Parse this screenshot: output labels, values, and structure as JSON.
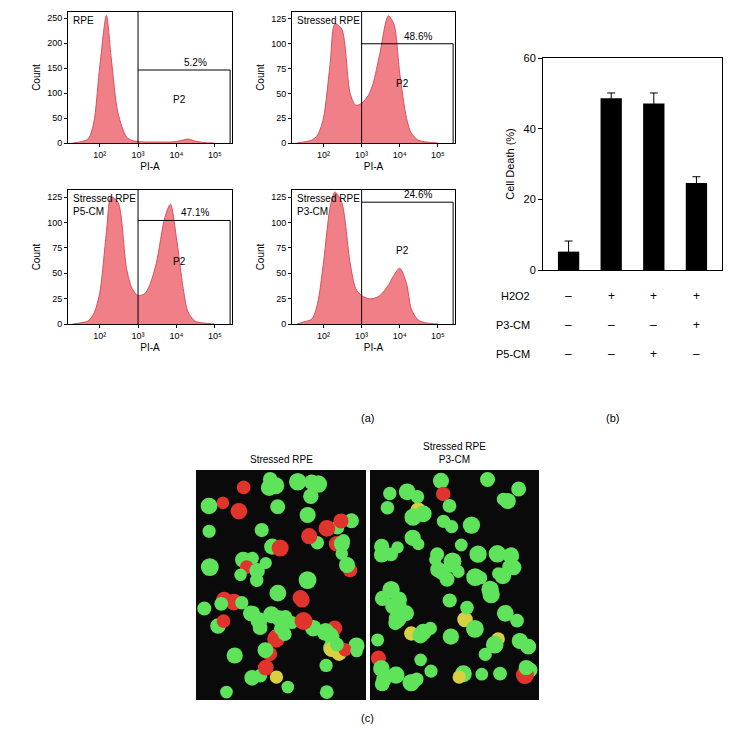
{
  "chart_data": [
    {
      "type": "area",
      "title": [
        "RPE"
      ],
      "x_label": "PI-A",
      "y_label": "Count",
      "color": "#f07f87",
      "log": "x",
      "x": [
        20,
        30,
        50,
        70,
        100,
        150,
        200,
        300,
        500,
        700,
        1000,
        1500,
        2000,
        3000,
        5000,
        7000,
        10000,
        15000,
        20000,
        30000,
        50000,
        100000
      ],
      "values": [
        0,
        2,
        8,
        40,
        150,
        255,
        170,
        60,
        12,
        5,
        3,
        2,
        2,
        2,
        2,
        2,
        3,
        6,
        8,
        4,
        1,
        0
      ],
      "xlim": [
        15,
        280000
      ],
      "xticks": [
        {
          "value": 100,
          "label": "10²"
        },
        {
          "value": 1000,
          "label": "10³"
        },
        {
          "value": 10000,
          "label": "10⁴"
        },
        {
          "value": 100000,
          "label": "10⁵"
        }
      ],
      "ylim": [
        0,
        262
      ],
      "yticks": [
        0,
        50,
        100,
        150,
        200,
        250
      ],
      "gate": {
        "name": "P2",
        "x": [
          1000,
          250000
        ],
        "height": 146,
        "label": "5.2%"
      }
    },
    {
      "type": "area",
      "title": [
        "Stressed RPE"
      ],
      "x_label": "PI-A",
      "y_label": "Count",
      "color": "#f07f87",
      "log": "x",
      "x": [
        20,
        30,
        50,
        70,
        100,
        150,
        200,
        300,
        500,
        700,
        1000,
        1500,
        2000,
        3000,
        5000,
        7000,
        10000,
        15000,
        20000,
        30000,
        50000,
        100000
      ],
      "values": [
        0,
        1,
        3,
        8,
        25,
        80,
        120,
        115,
        50,
        38,
        40,
        48,
        60,
        90,
        128,
        120,
        70,
        25,
        10,
        3,
        1,
        0
      ],
      "xlim": [
        15,
        280000
      ],
      "xticks": [
        {
          "value": 100,
          "label": "10²"
        },
        {
          "value": 1000,
          "label": "10³"
        },
        {
          "value": 10000,
          "label": "10⁴"
        },
        {
          "value": 100000,
          "label": "10⁵"
        }
      ],
      "ylim": [
        0,
        132
      ],
      "yticks": [
        0,
        25,
        50,
        75,
        100,
        125
      ],
      "gate": {
        "name": "P2",
        "x": [
          1000,
          250000
        ],
        "height": 100,
        "label": "48.6%"
      }
    },
    {
      "type": "area",
      "title": [
        "Stressed RPE",
        "P5-CM"
      ],
      "x_label": "PI-A",
      "y_label": "Count",
      "color": "#f07f87",
      "log": "x",
      "x": [
        20,
        30,
        50,
        70,
        100,
        150,
        200,
        300,
        500,
        700,
        1000,
        1500,
        2000,
        3000,
        5000,
        7000,
        10000,
        15000,
        20000,
        30000,
        50000,
        100000
      ],
      "values": [
        0,
        1,
        3,
        10,
        30,
        90,
        125,
        120,
        55,
        35,
        28,
        30,
        38,
        60,
        105,
        118,
        85,
        35,
        12,
        3,
        1,
        0
      ],
      "xlim": [
        15,
        280000
      ],
      "xticks": [
        {
          "value": 100,
          "label": "10²"
        },
        {
          "value": 1000,
          "label": "10³"
        },
        {
          "value": 10000,
          "label": "10⁴"
        },
        {
          "value": 100000,
          "label": "10⁵"
        }
      ],
      "ylim": [
        0,
        132
      ],
      "yticks": [
        0,
        25,
        50,
        75,
        100,
        125
      ],
      "gate": {
        "name": "P2",
        "x": [
          1000,
          250000
        ],
        "height": 102,
        "label": "47.1%"
      }
    },
    {
      "type": "area",
      "title": [
        "Stressed RPE",
        "P3-CM"
      ],
      "x_label": "PI-A",
      "y_label": "Count",
      "color": "#f07f87",
      "log": "x",
      "x": [
        20,
        30,
        50,
        70,
        100,
        150,
        200,
        300,
        500,
        700,
        1000,
        1500,
        2000,
        3000,
        5000,
        7000,
        10000,
        15000,
        20000,
        30000,
        50000,
        100000
      ],
      "values": [
        0,
        2,
        5,
        20,
        60,
        115,
        130,
        120,
        60,
        35,
        28,
        25,
        25,
        28,
        38,
        48,
        55,
        40,
        15,
        4,
        1,
        0
      ],
      "xlim": [
        15,
        280000
      ],
      "xticks": [
        {
          "value": 100,
          "label": "10²"
        },
        {
          "value": 1000,
          "label": "10³"
        },
        {
          "value": 10000,
          "label": "10⁴"
        },
        {
          "value": 100000,
          "label": "10⁵"
        }
      ],
      "ylim": [
        0,
        132
      ],
      "yticks": [
        0,
        25,
        50,
        75,
        100,
        125
      ],
      "gate": {
        "name": "P2",
        "x": [
          1000,
          250000
        ],
        "height": 120,
        "label": "24.6%"
      }
    },
    {
      "type": "bar",
      "y_label": "Cell Death (%)",
      "categories": [
        null,
        null,
        null,
        null
      ],
      "values": [
        5.2,
        48.6,
        47.1,
        24.6
      ],
      "errors": [
        3,
        1.5,
        3,
        1.8
      ],
      "color": "#000000",
      "ylim": [
        0,
        60
      ],
      "yticks": [
        0,
        20,
        40,
        60
      ],
      "tick_labels": "y",
      "conditions": [
        {
          "name": "H2O2",
          "marks": [
            "–",
            "+",
            "+",
            "+"
          ]
        },
        {
          "name": "P3-CM",
          "marks": [
            "–",
            "–",
            "–",
            "+"
          ]
        },
        {
          "name": "P5-CM",
          "marks": [
            "–",
            "–",
            "+",
            "–"
          ]
        }
      ]
    }
  ],
  "micrographs": [
    {
      "title": [
        "Stressed RPE"
      ]
    },
    {
      "title": [
        "Stressed RPE",
        "P3-CM"
      ]
    }
  ],
  "panel_labels": [
    "(a)",
    "(b)",
    "(c)"
  ]
}
